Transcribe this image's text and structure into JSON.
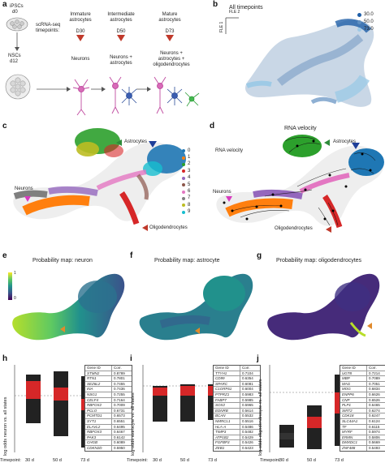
{
  "panels": {
    "a": {
      "label": "a",
      "ipscs": "iPSCs",
      "d0": "d0",
      "timepoints_label": "scRNA-seq\ntimepoints:",
      "nscs": "NSCs",
      "d12": "d12",
      "stages": [
        {
          "title": "Immature\nastrocytes",
          "day": "D30",
          "cells": "Neurons"
        },
        {
          "title": "Intermediate\nastrocytes",
          "day": "D50",
          "cells": "Neurons +\nastrocytes"
        },
        {
          "title": "Mature\nastrocytes",
          "day": "D73",
          "cells": "Neurons +\nastrocytes +\noligodendrocytes"
        }
      ]
    },
    "b": {
      "label": "b",
      "title": "All timepoints",
      "axis_x": "FLE 2",
      "axis_y": "FLE 1",
      "legend": [
        {
          "label": "30.0",
          "color": "#1f5fa8"
        },
        {
          "label": "50.0",
          "color": "#5f8fc0"
        },
        {
          "label": "73.0",
          "color": "#9ecae6"
        }
      ]
    },
    "c": {
      "label": "c",
      "astrocytes": "Astrocytes",
      "neurons": "Neurons",
      "oligodendrocytes": "Oligodendrocytes",
      "clusters": [
        {
          "label": "0",
          "color": "#1f77b4"
        },
        {
          "label": "1",
          "color": "#ff7f0e"
        },
        {
          "label": "2",
          "color": "#2ca02c"
        },
        {
          "label": "3",
          "color": "#d62728"
        },
        {
          "label": "4",
          "color": "#9467bd"
        },
        {
          "label": "5",
          "color": "#8c564b"
        },
        {
          "label": "6",
          "color": "#e377c2"
        },
        {
          "label": "7",
          "color": "#7f7f7f"
        },
        {
          "label": "8",
          "color": "#bcbd22"
        },
        {
          "label": "9",
          "color": "#17becf"
        }
      ]
    },
    "d": {
      "label": "d",
      "title": "RNA velocity",
      "subtitle": "RNA velocity",
      "astrocytes": "Astrocytes",
      "neurons": "Neurons",
      "oligodendrocytes": "Oligodendrocytes"
    },
    "e": {
      "label": "e",
      "title": "Probability map: neuron",
      "cbar_max": "1",
      "cbar_min": "0"
    },
    "f": {
      "label": "f",
      "title": "Probability map: astrocyte"
    },
    "g": {
      "label": "g",
      "title": "Probability map: oligodendrocytes"
    },
    "h": {
      "label": "h",
      "ylabel": "log odds neuron vs. all states",
      "timepoint_label": "Timepoint:",
      "timepoints": [
        "30 d",
        "50 d",
        "73 d"
      ],
      "header": [
        "Gene ID",
        "Corr."
      ],
      "genes": [
        [
          "STMN2",
          "0.8789"
        ],
        [
          "RTN1",
          "0.7801"
        ],
        [
          "SEZ6L2",
          "0.7455"
        ],
        [
          "INA",
          "0.7436"
        ],
        [
          "NSG1",
          "0.7255"
        ],
        [
          "CELF4",
          "0.7164"
        ],
        [
          "RBFOX2",
          "0.7009"
        ],
        [
          "PCLO",
          "0.6731"
        ],
        [
          "PCMTD1",
          "0.6573"
        ],
        [
          "SYT1",
          "0.6551"
        ],
        [
          "ELAVL2",
          "0.6495"
        ],
        [
          "RBFOX3",
          "0.6467"
        ],
        [
          "PAK3",
          "0.6142"
        ],
        [
          "CHGB",
          "0.6089"
        ],
        [
          "CDKN2D",
          "0.5950"
        ]
      ]
    },
    "i": {
      "label": "i",
      "ylabel": "log odds astrocyte vs. all states",
      "timepoint_label": "Timepoint:",
      "timepoints": [
        "30 d",
        "50 d",
        "73 d"
      ],
      "header": [
        "Gene ID",
        "Corr."
      ],
      "genes": [
        [
          "TTYH1",
          "0.7104"
        ],
        [
          "CD99",
          "0.6354"
        ],
        [
          "SPARC",
          "0.6081"
        ],
        [
          "C1ORF61",
          "0.6004"
        ],
        [
          "PTPRZ1",
          "0.5983"
        ],
        [
          "FABP7",
          "0.5985"
        ],
        [
          "SOX2",
          "0.5965"
        ],
        [
          "EDNRB",
          "0.5614"
        ],
        [
          "BCAN",
          "0.5532"
        ],
        [
          "NMRCL1",
          "0.5516"
        ],
        [
          "HLA-A",
          "0.5486"
        ],
        [
          "TIMP3",
          "0.5482"
        ],
        [
          "ATP1B2",
          "0.5429"
        ],
        [
          "FGFBP3",
          "0.5426"
        ],
        [
          "ZEB1",
          "0.5423"
        ]
      ]
    },
    "j": {
      "label": "j",
      "ylabel": "log odds oligodendrocyte vs. all states",
      "timepoint_label": "Timepoint:",
      "timepoints": [
        "30 d",
        "50 d",
        "73 d"
      ],
      "header": [
        "Gene ID",
        "Corr."
      ],
      "genes": [
        [
          "UGT8",
          "0.7214"
        ],
        [
          "MBP",
          "0.7089"
        ],
        [
          "MAG",
          "0.7051"
        ],
        [
          "MOG",
          "0.6834"
        ],
        [
          "ENPP6",
          "0.6626"
        ],
        [
          "CNP",
          "0.6526"
        ],
        [
          "PLP1",
          "0.6465"
        ],
        [
          "SIRT2",
          "0.6274"
        ],
        [
          "CDK18",
          "0.6247"
        ],
        [
          "SLC44A1",
          "0.6124"
        ],
        [
          "TF",
          "0.6115"
        ],
        [
          "MYRF",
          "0.5974"
        ],
        [
          "ERMN",
          "0.5806"
        ],
        [
          "DMXDC1",
          "0.5669"
        ],
        [
          "ZNF488",
          "0.5493"
        ]
      ]
    }
  }
}
